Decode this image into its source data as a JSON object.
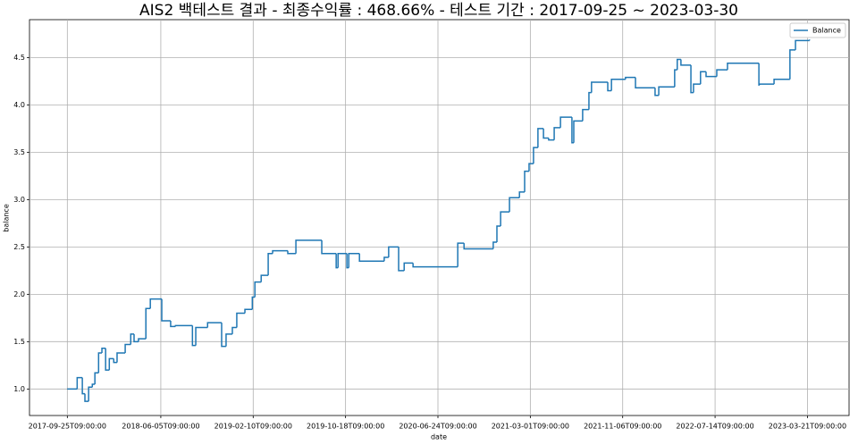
{
  "chart_data": {
    "type": "line",
    "drawstyle": "steps-post",
    "title": "AIS2 백테스트 결과 - 최종수익률 : 468.66% - 테스트 기간 : 2017-09-25 ~ 2023-03-30",
    "x_label": "date",
    "y_label": "balance",
    "legend": "upper right",
    "grid": true,
    "x": [
      "2017-09-25",
      "2017-10-22",
      "2017-11-05",
      "2017-11-12",
      "2017-11-22",
      "2017-12-02",
      "2017-12-09",
      "2017-12-19",
      "2017-12-28",
      "2018-01-07",
      "2018-01-17",
      "2018-01-29",
      "2018-02-07",
      "2018-03-01",
      "2018-03-16",
      "2018-03-25",
      "2018-04-06",
      "2018-04-26",
      "2018-05-08",
      "2018-06-08",
      "2018-07-02",
      "2018-07-15",
      "2018-08-30",
      "2018-09-08",
      "2018-10-10",
      "2018-11-17",
      "2018-11-29",
      "2018-12-16",
      "2018-12-28",
      "2019-01-19",
      "2019-02-08",
      "2019-02-15",
      "2019-03-04",
      "2019-03-23",
      "2019-04-04",
      "2019-05-15",
      "2019-06-06",
      "2019-08-15",
      "2019-09-23",
      "2019-09-28",
      "2019-10-22",
      "2019-10-27",
      "2019-11-25",
      "2020-01-31",
      "2020-02-12",
      "2020-03-10",
      "2020-03-25",
      "2020-04-18",
      "2020-08-17",
      "2020-09-03",
      "2020-11-21",
      "2020-12-01",
      "2020-12-11",
      "2021-01-04",
      "2021-01-31",
      "2021-02-14",
      "2021-02-26",
      "2021-03-10",
      "2021-03-22",
      "2021-04-06",
      "2021-04-20",
      "2021-05-05",
      "2021-05-22",
      "2021-06-22",
      "2021-06-27",
      "2021-07-21",
      "2021-08-07",
      "2021-08-14",
      "2021-09-27",
      "2021-10-07",
      "2021-11-14",
      "2021-12-11",
      "2022-02-02",
      "2022-02-12",
      "2022-03-27",
      "2022-04-03",
      "2022-04-13",
      "2022-05-10",
      "2022-05-17",
      "2022-06-05",
      "2022-06-20",
      "2022-07-19",
      "2022-08-17",
      "2022-11-10",
      "2022-11-12",
      "2022-12-21",
      "2023-02-02",
      "2023-02-17",
      "2023-03-27"
    ],
    "series": [
      {
        "name": "Balance",
        "color": "#1f77b4",
        "values": [
          1.0,
          1.12,
          0.95,
          0.87,
          1.02,
          1.05,
          1.17,
          1.38,
          1.43,
          1.2,
          1.32,
          1.28,
          1.38,
          1.47,
          1.58,
          1.5,
          1.53,
          1.85,
          1.95,
          1.72,
          1.66,
          1.67,
          1.46,
          1.65,
          1.7,
          1.45,
          1.58,
          1.65,
          1.8,
          1.84,
          1.97,
          2.13,
          2.2,
          2.43,
          2.46,
          2.43,
          2.57,
          2.43,
          2.28,
          2.43,
          2.28,
          2.43,
          2.35,
          2.39,
          2.5,
          2.25,
          2.33,
          2.29,
          2.54,
          2.48,
          2.55,
          2.72,
          2.87,
          3.02,
          3.08,
          3.3,
          3.38,
          3.55,
          3.75,
          3.65,
          3.63,
          3.76,
          3.87,
          3.6,
          3.83,
          3.95,
          4.13,
          4.24,
          4.15,
          4.27,
          4.29,
          4.18,
          4.1,
          4.19,
          4.37,
          4.48,
          4.42,
          4.13,
          4.22,
          4.35,
          4.3,
          4.37,
          4.44,
          4.21,
          4.22,
          4.27,
          4.58,
          4.68,
          4.69
        ]
      }
    ],
    "xlim": [
      "2017-06-15",
      "2023-07-12"
    ],
    "xticks": [
      "2017-09-25T09:00:00",
      "2018-06-05T09:00:00",
      "2019-02-10T09:00:00",
      "2019-10-18T09:00:00",
      "2020-06-24T09:00:00",
      "2021-03-01T09:00:00",
      "2021-11-06T09:00:00",
      "2022-07-14T09:00:00",
      "2023-03-21T09:00:00"
    ],
    "ylim": [
      0.72,
      4.9
    ],
    "yticks": [
      {
        "value": 1,
        "label": "1.0"
      },
      {
        "value": 1.5,
        "label": "1.5"
      },
      {
        "value": 2,
        "label": "2.0"
      },
      {
        "value": 2.5,
        "label": "2.5"
      },
      {
        "value": 3,
        "label": "3.0"
      },
      {
        "value": 3.5,
        "label": "3.5"
      },
      {
        "value": 4,
        "label": "4.0"
      },
      {
        "value": 4.5,
        "label": "4.5"
      }
    ]
  }
}
